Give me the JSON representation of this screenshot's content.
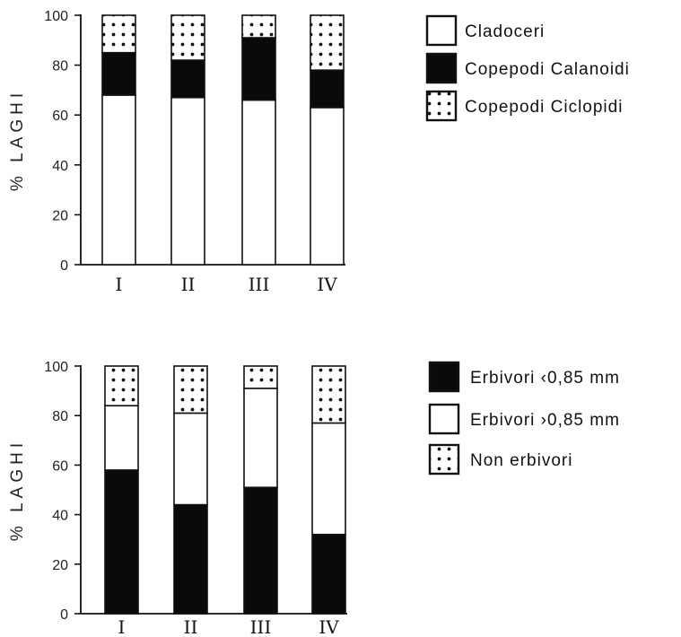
{
  "chart_data": [
    {
      "type": "bar",
      "stacked": true,
      "ylabel": "% LAGHI",
      "ylim": [
        0,
        100
      ],
      "yticks": [
        0,
        20,
        40,
        60,
        80,
        100
      ],
      "categories": [
        "I",
        "II",
        "III",
        "IV"
      ],
      "series": [
        {
          "name": "Cladoceri",
          "pattern": "white",
          "values": [
            68,
            67,
            66,
            63
          ]
        },
        {
          "name": "Copepodi Calanoidi",
          "pattern": "black",
          "values": [
            17,
            15,
            25,
            15
          ]
        },
        {
          "name": "Copepodi Ciclopidi",
          "pattern": "dots",
          "values": [
            15,
            18,
            9,
            22
          ]
        }
      ],
      "legend_position": "right"
    },
    {
      "type": "bar",
      "stacked": true,
      "ylabel": "% LAGHI",
      "ylim": [
        0,
        100
      ],
      "yticks": [
        0,
        20,
        40,
        60,
        80,
        100
      ],
      "categories": [
        "I",
        "II",
        "III",
        "IV"
      ],
      "series": [
        {
          "name": "Erbivori ‹0,85 mm",
          "pattern": "black",
          "values": [
            58,
            44,
            51,
            32
          ]
        },
        {
          "name": "Erbivori ›0,85 mm",
          "pattern": "white",
          "values": [
            26,
            37,
            40,
            45
          ]
        },
        {
          "name": "Non erbivori",
          "pattern": "dots",
          "values": [
            16,
            19,
            9,
            23
          ]
        }
      ],
      "legend_position": "right"
    }
  ]
}
